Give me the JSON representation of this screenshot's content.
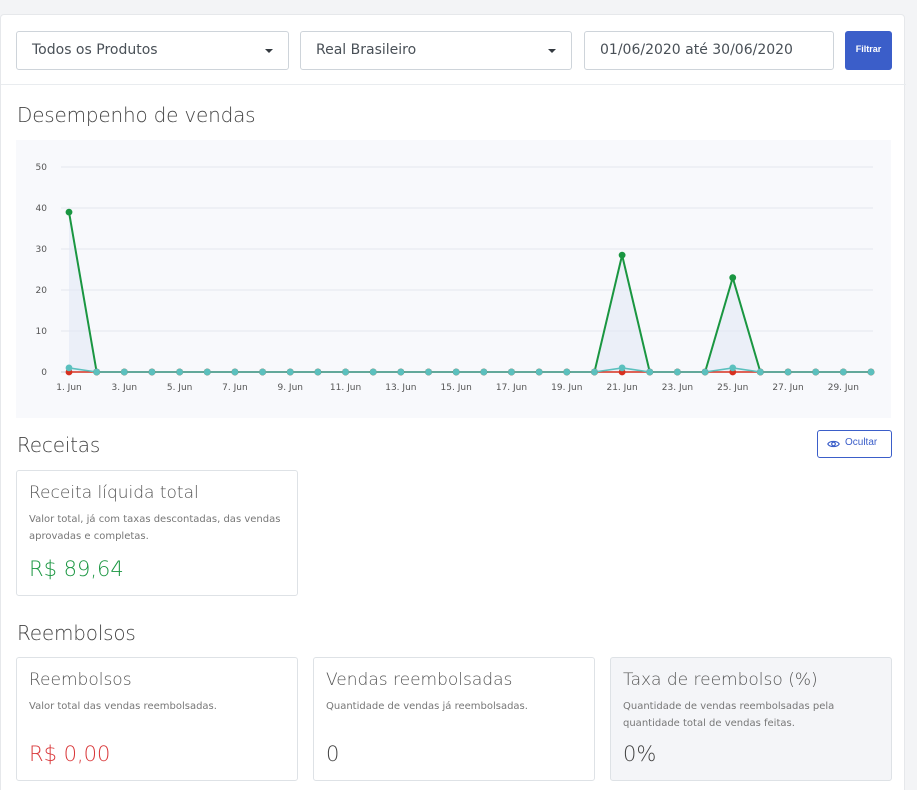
{
  "filters": {
    "product_select": "Todos os Produtos",
    "currency_select": "Real Brasileiro",
    "date_range": "01/06/2020 até 30/06/2020",
    "filter_button": "Filtrar"
  },
  "sales_section": {
    "title": "Desempenho de vendas"
  },
  "chart_data": {
    "type": "line",
    "title": "",
    "x": [
      "1. Jun",
      "2. Jun",
      "3. Jun",
      "4. Jun",
      "5. Jun",
      "6. Jun",
      "7. Jun",
      "8. Jun",
      "9. Jun",
      "10. Jun",
      "11. Jun",
      "12. Jun",
      "13. Jun",
      "14. Jun",
      "15. Jun",
      "16. Jun",
      "17. Jun",
      "18. Jun",
      "19. Jun",
      "20. Jun",
      "21. Jun",
      "22. Jun",
      "23. Jun",
      "24. Jun",
      "25. Jun",
      "26. Jun",
      "27. Jun",
      "28. Jun",
      "29. Jun",
      "30. Jun"
    ],
    "tick_labels": [
      "1. Jun",
      "3. Jun",
      "5. Jun",
      "7. Jun",
      "9. Jun",
      "11. Jun",
      "13. Jun",
      "15. Jun",
      "17. Jun",
      "19. Jun",
      "21. Jun",
      "23. Jun",
      "25. Jun",
      "27. Jun",
      "29. Jun"
    ],
    "ylim": [
      0,
      50
    ],
    "yticks": [
      0,
      10,
      20,
      30,
      40,
      50
    ],
    "grid": true,
    "series": [
      {
        "values": [
          39,
          0,
          0,
          0,
          0,
          0,
          0,
          0,
          0,
          0,
          0,
          0,
          0,
          0,
          0,
          0,
          0,
          0,
          0,
          0,
          28.5,
          0,
          0,
          0,
          23,
          0,
          0,
          0,
          0,
          0
        ],
        "color": "#1a9641"
      },
      {
        "values": [
          0,
          0,
          0,
          0,
          0,
          0,
          0,
          0,
          0,
          0,
          0,
          0,
          0,
          0,
          0,
          0,
          0,
          0,
          0,
          0,
          0,
          0,
          0,
          0,
          0,
          0,
          0,
          0,
          0,
          0
        ],
        "color": "#d7301f"
      },
      {
        "values": [
          1,
          0,
          0,
          0,
          0,
          0,
          0,
          0,
          0,
          0,
          0,
          0,
          0,
          0,
          0,
          0,
          0,
          0,
          0,
          0,
          1,
          0,
          0,
          0,
          1,
          0,
          0,
          0,
          0,
          0
        ],
        "color": "#5bc0be"
      }
    ]
  },
  "revenue_section": {
    "title": "Receitas",
    "hide_button": "Ocultar",
    "card": {
      "title": "Receita líquida total",
      "desc_line1": "Valor total, já com taxas descontadas, das vendas",
      "desc_line2": "aprovadas e completas.",
      "value": "R$ 89,64",
      "value_color": "#1a9641"
    }
  },
  "refunds_section": {
    "title": "Reembolsos",
    "cards": [
      {
        "title": "Reembolsos",
        "desc_line1": "Valor total das vendas reembolsadas.",
        "desc_line2": "",
        "value": "R$ 0,00",
        "value_color": "#d9383a"
      },
      {
        "title": "Vendas reembolsadas",
        "desc_line1": "Quantidade de vendas já reembolsadas.",
        "desc_line2": "",
        "value": "0",
        "value_color": "#444444"
      },
      {
        "title": "Taxa de reembolso (%)",
        "desc_line1": "Quantidade de vendas reembolsadas pela",
        "desc_line2": "quantidade total de vendas feitas.",
        "value": "0%",
        "value_color": "#444444"
      }
    ]
  },
  "icons": {
    "eye": "eye-icon",
    "caret": "caret-down-icon"
  }
}
